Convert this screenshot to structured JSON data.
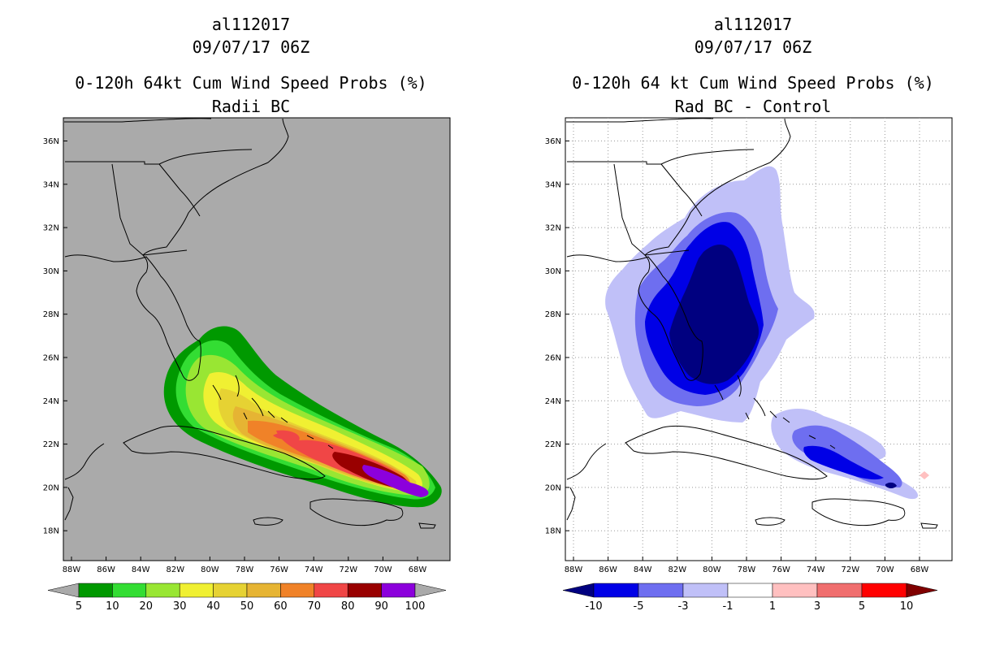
{
  "panels": [
    {
      "storm_id": "al112017",
      "datetime": "09/07/17 06Z",
      "title": "0-120h 64kt Cum Wind Speed Probs (%)",
      "subtitle": "Radii BC",
      "colors": {
        "background": "#aaaaaa",
        "coast": "#000000"
      },
      "lat_labels": [
        "36N",
        "34N",
        "32N",
        "30N",
        "28N",
        "26N",
        "24N",
        "22N",
        "20N",
        "18N"
      ],
      "lon_labels": [
        "88W",
        "86W",
        "84W",
        "82W",
        "80W",
        "78W",
        "76W",
        "74W",
        "72W",
        "70W",
        "68W"
      ],
      "colorbar": {
        "labels": [
          "5",
          "10",
          "20",
          "30",
          "40",
          "50",
          "60",
          "70",
          "80",
          "90",
          "100"
        ],
        "colors": [
          "#009900",
          "#33dd33",
          "#99e633",
          "#f0f032",
          "#e6d233",
          "#e6b433",
          "#f08228",
          "#f04646",
          "#990000",
          "#8c00dc"
        ],
        "under": "#aaaaaa",
        "over": "#aaaaaa"
      }
    },
    {
      "storm_id": "al112017",
      "datetime": "09/07/17 06Z",
      "title": "0-120h 64 kt Cum Wind Speed Probs (%)",
      "subtitle": "Rad BC - Control",
      "colors": {
        "background": "#ffffff",
        "coast": "#000000"
      },
      "lat_labels": [
        "36N",
        "34N",
        "32N",
        "30N",
        "28N",
        "26N",
        "24N",
        "22N",
        "20N",
        "18N"
      ],
      "lon_labels": [
        "88W",
        "86W",
        "84W",
        "82W",
        "80W",
        "78W",
        "76W",
        "74W",
        "72W",
        "70W",
        "68W"
      ],
      "colorbar": {
        "labels": [
          "-10",
          "-5",
          "-3",
          "-1",
          "1",
          "3",
          "5",
          "10"
        ],
        "colors": [
          "#0000e6",
          "#6e6ef0",
          "#c0c0f8",
          "#ffffff",
          "#ffc0c0",
          "#f06e6e",
          "#ff0000"
        ],
        "under": "#000080",
        "over": "#800000"
      }
    }
  ]
}
